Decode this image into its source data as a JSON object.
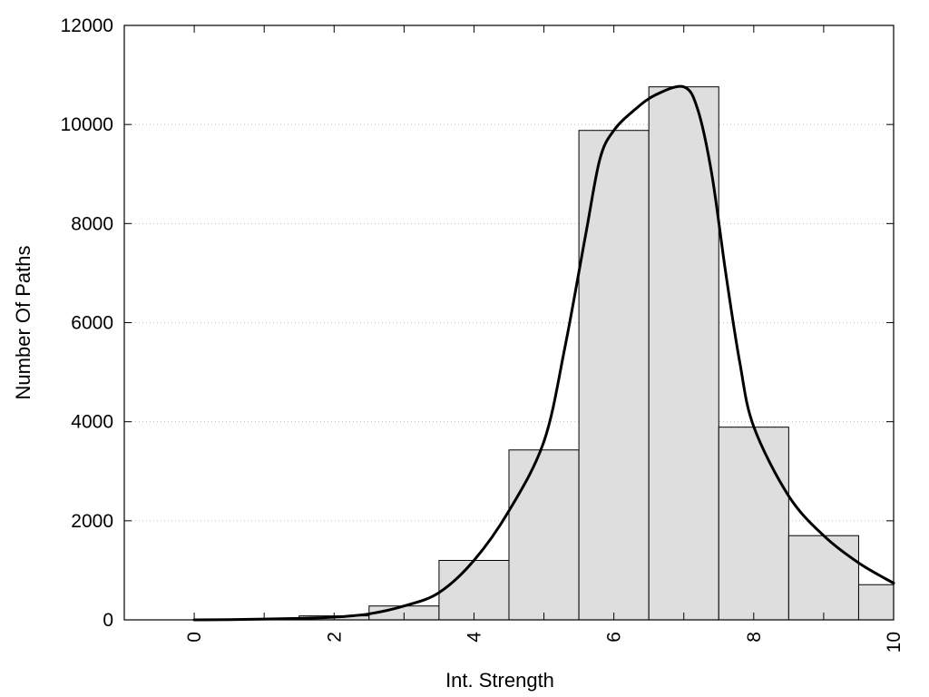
{
  "chart_data": {
    "type": "bar",
    "xlabel": "Int. Strength",
    "ylabel": "Number Of Paths",
    "xlim": [
      -1,
      10
    ],
    "ylim": [
      0,
      12000
    ],
    "xticks": [
      0,
      2,
      4,
      6,
      8,
      10
    ],
    "yticks": [
      0,
      2000,
      4000,
      6000,
      8000,
      10000,
      12000
    ],
    "grid": "horizontal-dotted",
    "bars": [
      {
        "x": 0,
        "value": 0
      },
      {
        "x": 1,
        "value": 10
      },
      {
        "x": 2,
        "value": 80
      },
      {
        "x": 3,
        "value": 280
      },
      {
        "x": 4,
        "value": 1200
      },
      {
        "x": 5,
        "value": 3430
      },
      {
        "x": 6,
        "value": 9880
      },
      {
        "x": 7,
        "value": 10760
      },
      {
        "x": 8,
        "value": 3890
      },
      {
        "x": 9,
        "value": 1700
      },
      {
        "x": 10,
        "value": 710
      }
    ],
    "bar_width": 1,
    "bar_color": "#dedede",
    "curve": {
      "type": "line",
      "color": "#000000",
      "points": [
        [
          0,
          0
        ],
        [
          0.5,
          5
        ],
        [
          1,
          15
        ],
        [
          1.5,
          30
        ],
        [
          2,
          55
        ],
        [
          2.5,
          120
        ],
        [
          3,
          280
        ],
        [
          3.5,
          550
        ],
        [
          4,
          1200
        ],
        [
          4.5,
          2200
        ],
        [
          5,
          3600
        ],
        [
          5.3,
          5500
        ],
        [
          5.6,
          7800
        ],
        [
          5.8,
          9300
        ],
        [
          6,
          9880
        ],
        [
          6.3,
          10300
        ],
        [
          6.6,
          10600
        ],
        [
          7,
          10760
        ],
        [
          7.2,
          10300
        ],
        [
          7.4,
          9000
        ],
        [
          7.6,
          7000
        ],
        [
          7.8,
          5200
        ],
        [
          8,
          3900
        ],
        [
          8.5,
          2500
        ],
        [
          9,
          1700
        ],
        [
          9.5,
          1150
        ],
        [
          10,
          740
        ]
      ]
    }
  }
}
